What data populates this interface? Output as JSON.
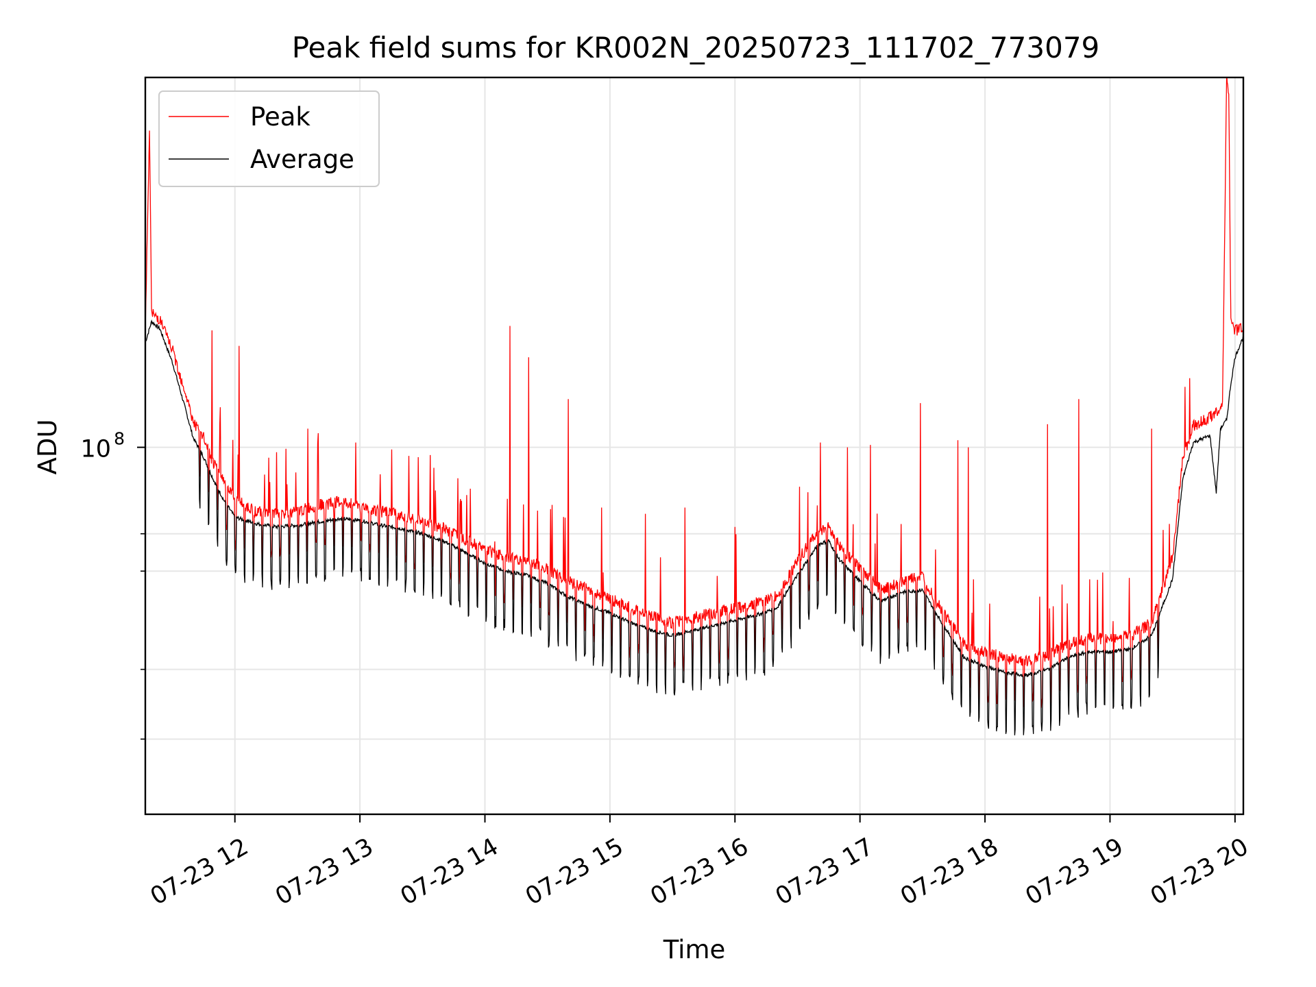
{
  "chart_data": {
    "type": "line",
    "title": "Peak field sums for KR002N_20250723_111702_773079",
    "xlabel": "Time",
    "ylabel": "ADU",
    "xlim": [
      "2025-07-23 11:17",
      "2025-07-23 20:04"
    ],
    "ylim": [
      22000000,
      460000000
    ],
    "yscale": "log",
    "yticks_major": [
      {
        "value": 100000000,
        "label_base": "10",
        "label_exp": "8"
      }
    ],
    "yticks_minor": [
      30000000,
      40000000,
      60000000,
      70000000
    ],
    "xticks": [
      {
        "value": "2025-07-23 12:00",
        "label": "07-23 12"
      },
      {
        "value": "2025-07-23 13:00",
        "label": "07-23 13"
      },
      {
        "value": "2025-07-23 14:00",
        "label": "07-23 14"
      },
      {
        "value": "2025-07-23 15:00",
        "label": "07-23 15"
      },
      {
        "value": "2025-07-23 16:00",
        "label": "07-23 16"
      },
      {
        "value": "2025-07-23 17:00",
        "label": "07-23 17"
      },
      {
        "value": "2025-07-23 18:00",
        "label": "07-23 18"
      },
      {
        "value": "2025-07-23 19:00",
        "label": "07-23 19"
      },
      {
        "value": "2025-07-23 20:00",
        "label": "07-23 20"
      }
    ],
    "grid": true,
    "legend_position": "upper-left",
    "series": [
      {
        "name": "Peak",
        "color": "#ff0000",
        "points": [
          [
            "2025-07-23 11:17",
            158000000
          ],
          [
            "2025-07-23 11:19",
            375000000
          ],
          [
            "2025-07-23 11:20",
            172000000
          ],
          [
            "2025-07-23 11:24",
            168000000
          ],
          [
            "2025-07-23 11:30",
            148000000
          ],
          [
            "2025-07-23 11:36",
            125000000
          ],
          [
            "2025-07-23 11:40",
            110000000
          ],
          [
            "2025-07-23 11:45",
            103000000
          ],
          [
            "2025-07-23 11:50",
            92000000
          ],
          [
            "2025-07-23 11:55",
            86000000
          ],
          [
            "2025-07-23 11:58",
            82000000
          ],
          [
            "2025-07-23 12:00",
            80000000
          ],
          [
            "2025-07-23 12:05",
            78000000
          ],
          [
            "2025-07-23 12:10",
            76000000
          ],
          [
            "2025-07-23 12:20",
            75000000
          ],
          [
            "2025-07-23 12:30",
            76000000
          ],
          [
            "2025-07-23 12:40",
            78000000
          ],
          [
            "2025-07-23 12:50",
            79000000
          ],
          [
            "2025-07-23 13:00",
            78000000
          ],
          [
            "2025-07-23 13:10",
            76000000
          ],
          [
            "2025-07-23 13:20",
            75000000
          ],
          [
            "2025-07-23 13:30",
            73000000
          ],
          [
            "2025-07-23 13:40",
            71000000
          ],
          [
            "2025-07-23 13:50",
            68000000
          ],
          [
            "2025-07-23 14:00",
            65000000
          ],
          [
            "2025-07-23 14:10",
            63000000
          ],
          [
            "2025-07-23 14:20",
            62000000
          ],
          [
            "2025-07-23 14:30",
            60000000
          ],
          [
            "2025-07-23 14:40",
            57000000
          ],
          [
            "2025-07-23 14:50",
            55000000
          ],
          [
            "2025-07-23 15:00",
            53000000
          ],
          [
            "2025-07-23 15:10",
            51000000
          ],
          [
            "2025-07-23 15:20",
            49500000
          ],
          [
            "2025-07-23 15:30",
            48000000
          ],
          [
            "2025-07-23 15:40",
            49000000
          ],
          [
            "2025-07-23 15:50",
            50000000
          ],
          [
            "2025-07-23 16:00",
            51000000
          ],
          [
            "2025-07-23 16:10",
            52000000
          ],
          [
            "2025-07-23 16:20",
            53500000
          ],
          [
            "2025-07-23 16:30",
            62000000
          ],
          [
            "2025-07-23 16:40",
            70000000
          ],
          [
            "2025-07-23 16:45",
            71000000
          ],
          [
            "2025-07-23 16:50",
            66000000
          ],
          [
            "2025-07-23 17:00",
            60000000
          ],
          [
            "2025-07-23 17:10",
            55000000
          ],
          [
            "2025-07-23 17:20",
            57000000
          ],
          [
            "2025-07-23 17:30",
            58000000
          ],
          [
            "2025-07-23 17:40",
            50000000
          ],
          [
            "2025-07-23 17:50",
            44000000
          ],
          [
            "2025-07-23 18:00",
            42500000
          ],
          [
            "2025-07-23 18:10",
            41500000
          ],
          [
            "2025-07-23 18:20",
            41000000
          ],
          [
            "2025-07-23 18:30",
            42000000
          ],
          [
            "2025-07-23 18:40",
            44000000
          ],
          [
            "2025-07-23 18:50",
            45000000
          ],
          [
            "2025-07-23 19:00",
            45000000
          ],
          [
            "2025-07-23 19:10",
            45500000
          ],
          [
            "2025-07-23 19:20",
            48000000
          ],
          [
            "2025-07-23 19:30",
            63000000
          ],
          [
            "2025-07-23 19:35",
            95000000
          ],
          [
            "2025-07-23 19:40",
            108000000
          ],
          [
            "2025-07-23 19:48",
            112000000
          ],
          [
            "2025-07-23 19:54",
            118000000
          ],
          [
            "2025-07-23 19:56",
            460000000
          ],
          [
            "2025-07-23 19:57",
            430000000
          ],
          [
            "2025-07-23 19:58",
            165000000
          ],
          [
            "2025-07-23 20:00",
            160000000
          ],
          [
            "2025-07-23 20:04",
            162000000
          ]
        ],
        "spikes": [
          [
            "2025-07-23 11:49",
            162000000
          ],
          [
            "2025-07-23 11:53",
            118000000
          ],
          [
            "2025-07-23 12:02",
            152000000
          ],
          [
            "2025-07-23 12:20",
            98000000
          ],
          [
            "2025-07-23 12:35",
            108000000
          ],
          [
            "2025-07-23 12:40",
            106000000
          ],
          [
            "2025-07-23 12:58",
            102000000
          ],
          [
            "2025-07-23 13:28",
            96000000
          ],
          [
            "2025-07-23 13:47",
            88000000
          ],
          [
            "2025-07-23 14:12",
            165000000
          ],
          [
            "2025-07-23 14:21",
            145000000
          ],
          [
            "2025-07-23 14:40",
            122000000
          ],
          [
            "2025-07-23 14:56",
            78000000
          ],
          [
            "2025-07-23 15:17",
            76000000
          ],
          [
            "2025-07-23 15:36",
            78000000
          ],
          [
            "2025-07-23 16:00",
            72000000
          ],
          [
            "2025-07-23 16:31",
            85000000
          ],
          [
            "2025-07-23 16:41",
            102000000
          ],
          [
            "2025-07-23 16:54",
            100000000
          ],
          [
            "2025-07-23 17:05",
            101000000
          ],
          [
            "2025-07-23 17:29",
            120000000
          ],
          [
            "2025-07-23 17:47",
            103000000
          ],
          [
            "2025-07-23 17:52",
            100000000
          ],
          [
            "2025-07-23 18:30",
            110000000
          ],
          [
            "2025-07-23 18:45",
            122000000
          ],
          [
            "2025-07-23 19:20",
            108000000
          ]
        ]
      },
      {
        "name": "Average",
        "color": "#000000",
        "points": [
          [
            "2025-07-23 11:17",
            154000000
          ],
          [
            "2025-07-23 11:20",
            168000000
          ],
          [
            "2025-07-23 11:24",
            163000000
          ],
          [
            "2025-07-23 11:30",
            142000000
          ],
          [
            "2025-07-23 11:36",
            118000000
          ],
          [
            "2025-07-23 11:40",
            104000000
          ],
          [
            "2025-07-23 11:45",
            96000000
          ],
          [
            "2025-07-23 11:50",
            87000000
          ],
          [
            "2025-07-23 11:55",
            80000000
          ],
          [
            "2025-07-23 12:00",
            75000000
          ],
          [
            "2025-07-23 12:10",
            73000000
          ],
          [
            "2025-07-23 12:20",
            72000000
          ],
          [
            "2025-07-23 12:30",
            72500000
          ],
          [
            "2025-07-23 12:40",
            73500000
          ],
          [
            "2025-07-23 12:50",
            74500000
          ],
          [
            "2025-07-23 13:00",
            74000000
          ],
          [
            "2025-07-23 13:10",
            72500000
          ],
          [
            "2025-07-23 13:20",
            71500000
          ],
          [
            "2025-07-23 13:30",
            70000000
          ],
          [
            "2025-07-23 13:40",
            68000000
          ],
          [
            "2025-07-23 13:50",
            65000000
          ],
          [
            "2025-07-23 14:00",
            62000000
          ],
          [
            "2025-07-23 14:10",
            60000000
          ],
          [
            "2025-07-23 14:20",
            59000000
          ],
          [
            "2025-07-23 14:30",
            57000000
          ],
          [
            "2025-07-23 14:40",
            54000000
          ],
          [
            "2025-07-23 14:50",
            52000000
          ],
          [
            "2025-07-23 15:00",
            50500000
          ],
          [
            "2025-07-23 15:10",
            48500000
          ],
          [
            "2025-07-23 15:20",
            47000000
          ],
          [
            "2025-07-23 15:30",
            46000000
          ],
          [
            "2025-07-23 15:40",
            47000000
          ],
          [
            "2025-07-23 15:50",
            48000000
          ],
          [
            "2025-07-23 16:00",
            49000000
          ],
          [
            "2025-07-23 16:10",
            50000000
          ],
          [
            "2025-07-23 16:20",
            51500000
          ],
          [
            "2025-07-23 16:30",
            59000000
          ],
          [
            "2025-07-23 16:40",
            67000000
          ],
          [
            "2025-07-23 16:45",
            68000000
          ],
          [
            "2025-07-23 16:50",
            63000000
          ],
          [
            "2025-07-23 17:00",
            57500000
          ],
          [
            "2025-07-23 17:10",
            53000000
          ],
          [
            "2025-07-23 17:20",
            55000000
          ],
          [
            "2025-07-23 17:30",
            55500000
          ],
          [
            "2025-07-23 17:40",
            48000000
          ],
          [
            "2025-07-23 17:50",
            42000000
          ],
          [
            "2025-07-23 18:00",
            40500000
          ],
          [
            "2025-07-23 18:10",
            39500000
          ],
          [
            "2025-07-23 18:20",
            39000000
          ],
          [
            "2025-07-23 18:30",
            40000000
          ],
          [
            "2025-07-23 18:40",
            42000000
          ],
          [
            "2025-07-23 18:50",
            43000000
          ],
          [
            "2025-07-23 19:00",
            43000000
          ],
          [
            "2025-07-23 19:10",
            43500000
          ],
          [
            "2025-07-23 19:20",
            46000000
          ],
          [
            "2025-07-23 19:30",
            58000000
          ],
          [
            "2025-07-23 19:35",
            88000000
          ],
          [
            "2025-07-23 19:40",
            102000000
          ],
          [
            "2025-07-23 19:48",
            105000000
          ],
          [
            "2025-07-23 19:51",
            83000000
          ],
          [
            "2025-07-23 19:53",
            108000000
          ],
          [
            "2025-07-23 19:56",
            112000000
          ],
          [
            "2025-07-23 19:58",
            130000000
          ],
          [
            "2025-07-23 20:00",
            145000000
          ],
          [
            "2025-07-23 20:04",
            158000000
          ]
        ]
      }
    ]
  }
}
